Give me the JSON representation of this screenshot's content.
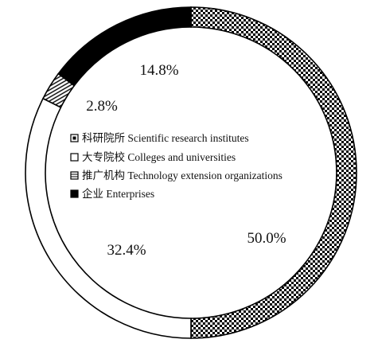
{
  "chart_data": {
    "type": "pie",
    "style": "donut",
    "title": "",
    "legend_position": "center",
    "categories": [
      "科研院所 Scientific research institutes",
      "大专院校 Colleges and universities",
      "推广机构 Technology extension organizations",
      "企业 Enterprises"
    ],
    "values": [
      50.0,
      32.4,
      2.8,
      14.8
    ],
    "labels": [
      "50.0%",
      "32.4%",
      "2.8%",
      "14.8%"
    ],
    "patterns": [
      "checker",
      "white",
      "diagonal-hatch",
      "solid-black"
    ],
    "colors": [
      "#000000",
      "#ffffff",
      "#000000",
      "#000000"
    ]
  }
}
